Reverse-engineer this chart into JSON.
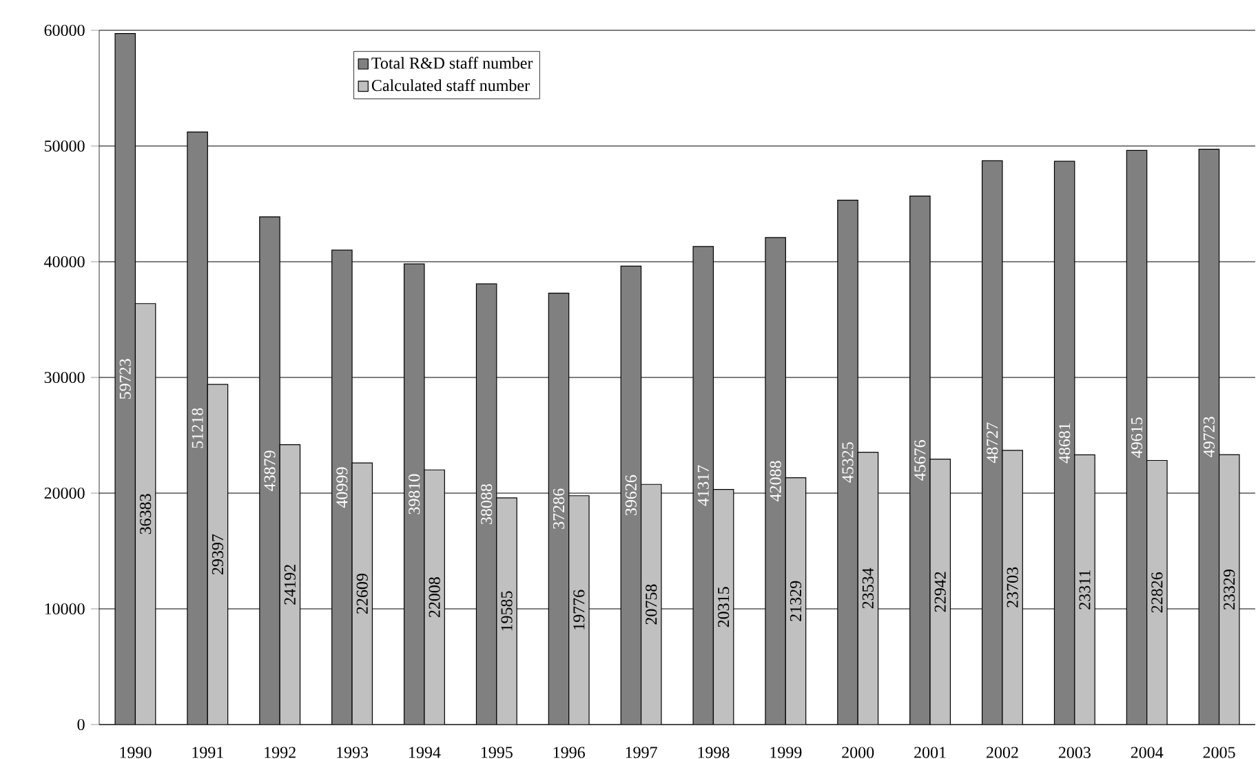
{
  "chart_data": {
    "type": "bar",
    "categories": [
      "1990",
      "1991",
      "1992",
      "1993",
      "1994",
      "1995",
      "1996",
      "1997",
      "1998",
      "1999",
      "2000",
      "2001",
      "2002",
      "2003",
      "2004",
      "2005"
    ],
    "series": [
      {
        "name": "Total R&D staff number",
        "color": "#808080",
        "values": [
          59723,
          51218,
          43879,
          40999,
          39810,
          38088,
          37286,
          39626,
          41317,
          42088,
          45325,
          45676,
          48727,
          48681,
          49615,
          49723
        ]
      },
      {
        "name": "Calculated staff number",
        "color": "#c0c0c0",
        "values": [
          36383,
          29397,
          24192,
          22609,
          22008,
          19585,
          19776,
          20758,
          20315,
          21329,
          23534,
          22942,
          23703,
          23311,
          22826,
          23329
        ]
      }
    ],
    "ylim": [
      0,
      60000
    ],
    "yticks": [
      0,
      10000,
      20000,
      30000,
      40000,
      50000,
      60000
    ],
    "grid": "y",
    "legend": "top left",
    "data_labels": true
  }
}
